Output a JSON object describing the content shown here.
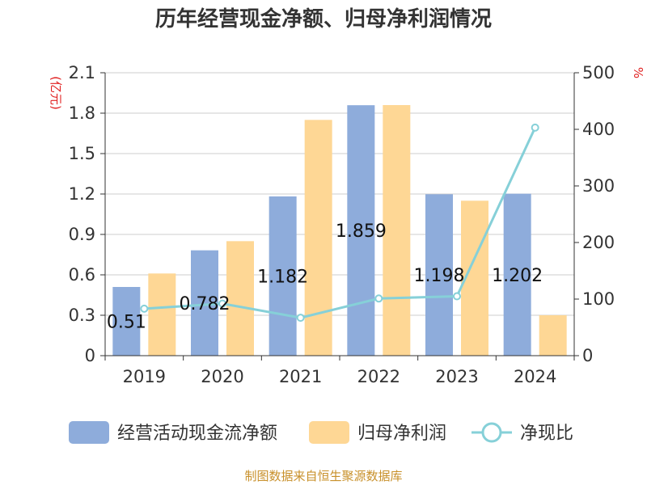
{
  "colors": {
    "bar1": "#8eacdb",
    "bar2": "#fed795",
    "line": "#86d0d8",
    "grid": "#cccccc",
    "axis": "#333333",
    "unit": "#e02020",
    "source": "#c8902a"
  },
  "chart_data": {
    "type": "bar",
    "title": "历年经营现金净额、归母净利润情况",
    "y_left_unit": "(亿元)",
    "y_right_unit": "%",
    "ylim_left": [
      0,
      2.1
    ],
    "ylim_right": [
      0,
      500
    ],
    "y_left_ticks": [
      "0",
      "0.3",
      "0.6",
      "0.9",
      "1.2",
      "1.5",
      "1.8",
      "2.1"
    ],
    "y_right_ticks": [
      "0",
      "100",
      "200",
      "300",
      "400",
      "500"
    ],
    "categories": [
      "2019",
      "2020",
      "2021",
      "2022",
      "2023",
      "2024"
    ],
    "series": [
      {
        "name": "经营活动现金流净额",
        "type": "bar",
        "axis": "left",
        "values": [
          0.51,
          0.782,
          1.182,
          1.859,
          1.198,
          1.202
        ],
        "labels": [
          "0.51",
          "0.782",
          "1.182",
          "1.859",
          "1.198",
          "1.202"
        ]
      },
      {
        "name": "归母净利润",
        "type": "bar",
        "axis": "left",
        "values": [
          0.61,
          0.85,
          1.75,
          1.86,
          1.15,
          0.3
        ]
      },
      {
        "name": "净现比",
        "type": "line",
        "axis": "right",
        "values": [
          83,
          92,
          67,
          101,
          105,
          403
        ]
      }
    ],
    "legend": [
      "经营活动现金流净额",
      "归母净利润",
      "净现比"
    ],
    "source": "制图数据来自恒生聚源数据库"
  }
}
